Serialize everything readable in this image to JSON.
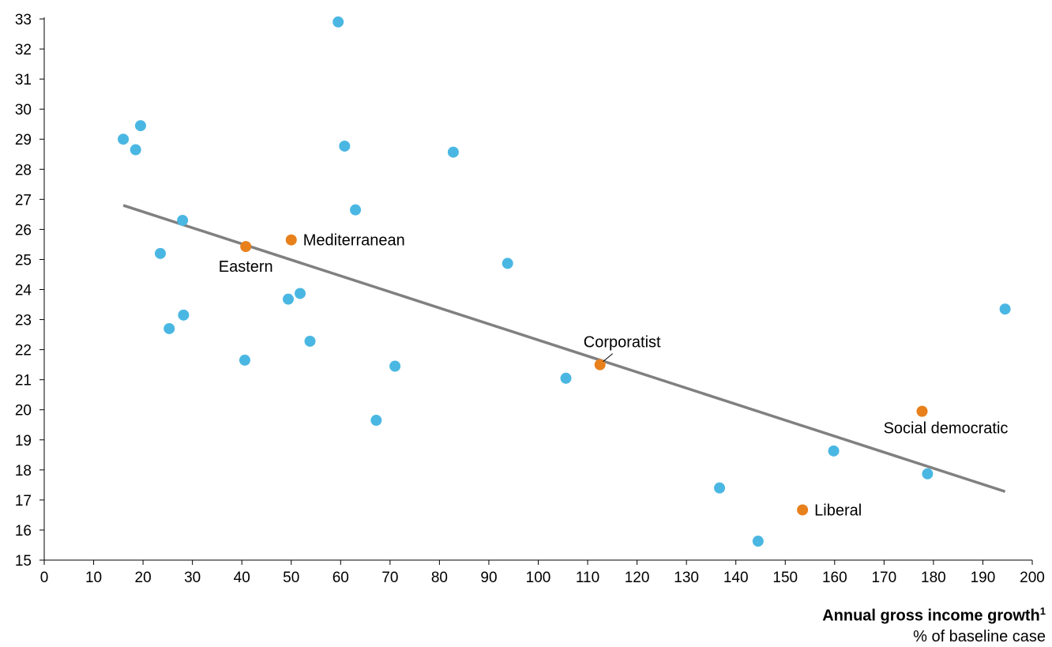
{
  "chart_data": {
    "type": "scatter",
    "xlim": [
      0,
      200
    ],
    "ylim": [
      15,
      33
    ],
    "x_ticks": [
      "0",
      "10",
      "20",
      "30",
      "40",
      "50",
      "60",
      "70",
      "80",
      "90",
      "100",
      "110",
      "120",
      "130",
      "140",
      "150",
      "160",
      "170",
      "180",
      "190",
      "200"
    ],
    "y_ticks": [
      "15",
      "16",
      "17",
      "18",
      "19",
      "20",
      "21",
      "22",
      "23",
      "24",
      "25",
      "26",
      "27",
      "28",
      "29",
      "30",
      "31",
      "32",
      "33"
    ],
    "xlabel": "Annual gross income growth",
    "xlabel_superscript": "1",
    "xlabel_unit": "% of baseline case",
    "grid": false,
    "colors": {
      "countries": "#4ab7e3",
      "groups": "#e8801c",
      "trend": "#808080"
    },
    "series": [
      {
        "points": [
          {
            "x": 16,
            "y": 29.0
          },
          {
            "x": 18.5,
            "y": 28.65
          },
          {
            "x": 19.5,
            "y": 29.45
          },
          {
            "x": 23.5,
            "y": 25.2
          },
          {
            "x": 25.3,
            "y": 22.7
          },
          {
            "x": 28,
            "y": 26.3
          },
          {
            "x": 28.2,
            "y": 23.15
          },
          {
            "x": 40.6,
            "y": 21.65
          },
          {
            "x": 49.4,
            "y": 23.68
          },
          {
            "x": 51.8,
            "y": 23.87
          },
          {
            "x": 53.8,
            "y": 22.28
          },
          {
            "x": 59.5,
            "y": 32.9
          },
          {
            "x": 60.8,
            "y": 28.77
          },
          {
            "x": 63,
            "y": 26.65
          },
          {
            "x": 67.2,
            "y": 19.65
          },
          {
            "x": 71,
            "y": 21.45
          },
          {
            "x": 82.8,
            "y": 28.57
          },
          {
            "x": 93.8,
            "y": 24.87
          },
          {
            "x": 105.6,
            "y": 21.05
          },
          {
            "x": 136.7,
            "y": 17.4
          },
          {
            "x": 144.5,
            "y": 15.63
          },
          {
            "x": 159.8,
            "y": 18.63
          },
          {
            "x": 178.8,
            "y": 17.87
          },
          {
            "x": 194.5,
            "y": 23.35
          }
        ]
      },
      {
        "points": [
          {
            "x": 40.8,
            "y": 25.43,
            "label": "Eastern"
          },
          {
            "x": 50,
            "y": 25.65,
            "label": "Mediterranean"
          },
          {
            "x": 112.5,
            "y": 21.5,
            "label": "Corporatist"
          },
          {
            "x": 153.5,
            "y": 16.67,
            "label": "Liberal"
          },
          {
            "x": 177.7,
            "y": 19.95,
            "label": "Social democratic"
          }
        ]
      }
    ],
    "trendline": {
      "x": [
        16,
        194.5
      ],
      "y": [
        26.8,
        17.28
      ]
    }
  }
}
